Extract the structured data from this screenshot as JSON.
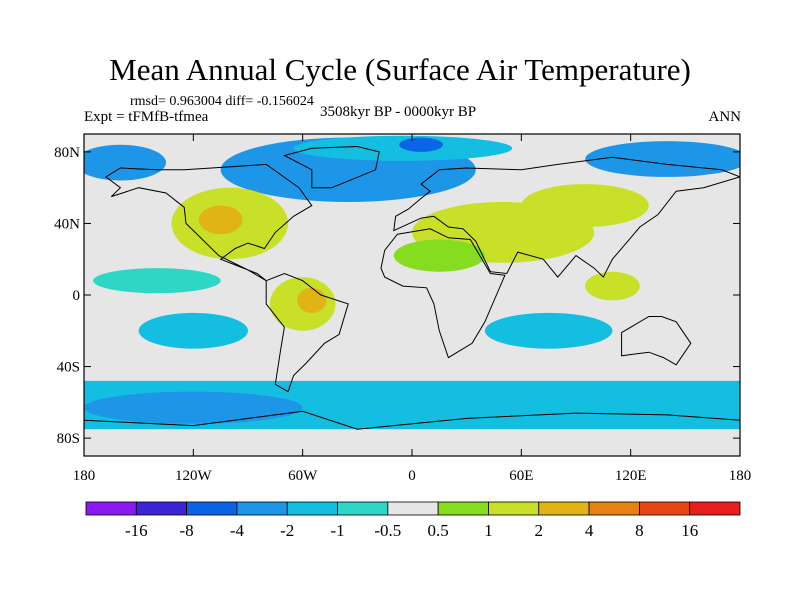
{
  "header": {
    "title": "Mean Annual Cycle (Surface Air Temperature)",
    "stats": "rmsd= 0.963004 diff= -0.156024",
    "experiment": "Expt = tFMfB-tfmea",
    "period": "3508kyr BP - 0000kyr BP",
    "season": "ANN"
  },
  "chart_data": {
    "type": "heatmap",
    "title": "Mean Annual Cycle (Surface Air Temperature)",
    "xlabel": "",
    "ylabel": "",
    "xlim": [
      -180,
      180
    ],
    "ylim": [
      -90,
      90
    ],
    "x_ticks": [
      {
        "value": -180,
        "label": "180"
      },
      {
        "value": -120,
        "label": "120W"
      },
      {
        "value": -60,
        "label": "60W"
      },
      {
        "value": 0,
        "label": "0"
      },
      {
        "value": 60,
        "label": "60E"
      },
      {
        "value": 120,
        "label": "120E"
      },
      {
        "value": 180,
        "label": "180"
      }
    ],
    "y_ticks": [
      {
        "value": 80,
        "label": "80N"
      },
      {
        "value": 40,
        "label": "40N"
      },
      {
        "value": 0,
        "label": "0"
      },
      {
        "value": -40,
        "label": "40S"
      },
      {
        "value": -80,
        "label": "80S"
      }
    ],
    "levels": [
      -16,
      -8,
      -4,
      -2,
      -1,
      -0.5,
      0.5,
      1,
      2,
      4,
      8,
      16
    ],
    "level_labels": [
      "-16",
      "-8",
      "-4",
      "-2",
      "-1",
      "-0.5",
      "0.5",
      "1",
      "2",
      "4",
      "8",
      "16"
    ],
    "colors": [
      "#8A1AF0",
      "#3A24D6",
      "#0A64E6",
      "#1E96E8",
      "#14BEE0",
      "#2ED6C6",
      "#E6E6E6",
      "#86DC1E",
      "#C8E028",
      "#E0B414",
      "#E68214",
      "#E64614",
      "#E61E1E"
    ],
    "regions": [
      {
        "name": "north-atlantic-polar",
        "bin": 3,
        "shape": "ellipse",
        "lon": -35,
        "lat": 70,
        "rlon": 70,
        "rlat": 18
      },
      {
        "name": "arctic-greenland",
        "bin": 4,
        "shape": "ellipse",
        "lon": -5,
        "lat": 82,
        "rlon": 60,
        "rlat": 7
      },
      {
        "name": "arctic-core",
        "bin": 2,
        "shape": "ellipse",
        "lon": 5,
        "lat": 84,
        "rlon": 12,
        "rlat": 4
      },
      {
        "name": "arctic-bering",
        "bin": 3,
        "shape": "ellipse",
        "lon": -160,
        "lat": 74,
        "rlon": 25,
        "rlat": 10
      },
      {
        "name": "arctic-siberia",
        "bin": 3,
        "shape": "ellipse",
        "lon": 140,
        "lat": 76,
        "rlon": 45,
        "rlat": 10
      },
      {
        "name": "north-america-warm",
        "bin": 8,
        "shape": "ellipse",
        "lon": -100,
        "lat": 40,
        "rlon": 32,
        "rlat": 20
      },
      {
        "name": "north-america-hot",
        "bin": 9,
        "shape": "ellipse",
        "lon": -105,
        "lat": 42,
        "rlon": 12,
        "rlat": 8
      },
      {
        "name": "eurasia-warm",
        "bin": 8,
        "shape": "ellipse",
        "lon": 50,
        "lat": 35,
        "rlon": 50,
        "rlat": 17
      },
      {
        "name": "sahara-green",
        "bin": 7,
        "shape": "ellipse",
        "lon": 15,
        "lat": 22,
        "rlon": 25,
        "rlat": 9
      },
      {
        "name": "asia-warm",
        "bin": 8,
        "shape": "ellipse",
        "lon": 95,
        "lat": 50,
        "rlon": 35,
        "rlat": 12
      },
      {
        "name": "south-america-warm",
        "bin": 8,
        "shape": "ellipse",
        "lon": -60,
        "lat": -5,
        "rlon": 18,
        "rlat": 15
      },
      {
        "name": "south-america-hot",
        "bin": 9,
        "shape": "ellipse",
        "lon": -55,
        "lat": -3,
        "rlon": 8,
        "rlat": 7
      },
      {
        "name": "indonesia-warm",
        "bin": 8,
        "shape": "ellipse",
        "lon": 110,
        "lat": 5,
        "rlon": 15,
        "rlat": 8
      },
      {
        "name": "southern-ocean-band",
        "bin": 4,
        "shape": "band",
        "lat0": -75,
        "lat1": -48
      },
      {
        "name": "southern-ocean-cold",
        "bin": 3,
        "shape": "ellipse",
        "lon": -120,
        "lat": -63,
        "rlon": 60,
        "rlat": 9
      },
      {
        "name": "south-pacific-cool",
        "bin": 4,
        "shape": "ellipse",
        "lon": -120,
        "lat": -20,
        "rlon": 30,
        "rlat": 10
      },
      {
        "name": "indian-ocean-cool",
        "bin": 4,
        "shape": "ellipse",
        "lon": 75,
        "lat": -20,
        "rlon": 35,
        "rlat": 10
      },
      {
        "name": "tropical-atlantic-cool",
        "bin": 5,
        "shape": "ellipse",
        "lon": -140,
        "lat": 8,
        "rlon": 35,
        "rlat": 7
      }
    ],
    "continents": [
      {
        "name": "north-america",
        "points": [
          [
            -168,
            66
          ],
          [
            -160,
            71
          ],
          [
            -140,
            70
          ],
          [
            -125,
            70
          ],
          [
            -95,
            72
          ],
          [
            -80,
            73
          ],
          [
            -62,
            60
          ],
          [
            -55,
            50
          ],
          [
            -65,
            44
          ],
          [
            -75,
            35
          ],
          [
            -81,
            26
          ],
          [
            -90,
            29
          ],
          [
            -97,
            26
          ],
          [
            -105,
            20
          ],
          [
            -95,
            16
          ],
          [
            -85,
            12
          ],
          [
            -80,
            8
          ],
          [
            -90,
            14
          ],
          [
            -106,
            22
          ],
          [
            -115,
            31
          ],
          [
            -124,
            40
          ],
          [
            -125,
            49
          ],
          [
            -135,
            57
          ],
          [
            -150,
            60
          ],
          [
            -165,
            55
          ],
          [
            -160,
            60
          ]
        ]
      },
      {
        "name": "greenland",
        "points": [
          [
            -55,
            60
          ],
          [
            -44,
            60
          ],
          [
            -20,
            70
          ],
          [
            -18,
            80
          ],
          [
            -30,
            83
          ],
          [
            -55,
            82
          ],
          [
            -70,
            78
          ],
          [
            -55,
            70
          ]
        ]
      },
      {
        "name": "south-america",
        "points": [
          [
            -80,
            8
          ],
          [
            -70,
            12
          ],
          [
            -60,
            8
          ],
          [
            -50,
            0
          ],
          [
            -35,
            -5
          ],
          [
            -40,
            -22
          ],
          [
            -48,
            -27
          ],
          [
            -58,
            -38
          ],
          [
            -65,
            -45
          ],
          [
            -68,
            -54
          ],
          [
            -75,
            -50
          ],
          [
            -72,
            -30
          ],
          [
            -70,
            -18
          ],
          [
            -80,
            -5
          ]
        ]
      },
      {
        "name": "europe-asia",
        "points": [
          [
            -10,
            36
          ],
          [
            -9,
            44
          ],
          [
            -2,
            48
          ],
          [
            5,
            54
          ],
          [
            10,
            58
          ],
          [
            5,
            62
          ],
          [
            15,
            70
          ],
          [
            30,
            71
          ],
          [
            60,
            70
          ],
          [
            80,
            73
          ],
          [
            110,
            77
          ],
          [
            140,
            73
          ],
          [
            170,
            70
          ],
          [
            180,
            66
          ],
          [
            160,
            60
          ],
          [
            145,
            58
          ],
          [
            135,
            45
          ],
          [
            125,
            38
          ],
          [
            120,
            32
          ],
          [
            110,
            20
          ],
          [
            105,
            10
          ],
          [
            100,
            15
          ],
          [
            90,
            22
          ],
          [
            80,
            10
          ],
          [
            72,
            20
          ],
          [
            58,
            24
          ],
          [
            52,
            12
          ],
          [
            43,
            13
          ],
          [
            35,
            30
          ],
          [
            28,
            37
          ],
          [
            20,
            38
          ],
          [
            12,
            44
          ],
          [
            5,
            43
          ]
        ]
      },
      {
        "name": "africa",
        "points": [
          [
            -17,
            15
          ],
          [
            -15,
            25
          ],
          [
            -8,
            34
          ],
          [
            10,
            37
          ],
          [
            20,
            32
          ],
          [
            32,
            31
          ],
          [
            43,
            12
          ],
          [
            51,
            11
          ],
          [
            40,
            -15
          ],
          [
            33,
            -27
          ],
          [
            20,
            -35
          ],
          [
            15,
            -20
          ],
          [
            12,
            -5
          ],
          [
            8,
            4
          ],
          [
            -5,
            5
          ],
          [
            -15,
            10
          ]
        ]
      },
      {
        "name": "australia",
        "points": [
          [
            115,
            -21
          ],
          [
            130,
            -12
          ],
          [
            137,
            -12
          ],
          [
            145,
            -15
          ],
          [
            153,
            -27
          ],
          [
            145,
            -39
          ],
          [
            138,
            -35
          ],
          [
            130,
            -32
          ],
          [
            115,
            -34
          ]
        ]
      },
      {
        "name": "antarctica",
        "points": [
          [
            -180,
            -70
          ],
          [
            -120,
            -73
          ],
          [
            -60,
            -65
          ],
          [
            -30,
            -75
          ],
          [
            30,
            -69
          ],
          [
            90,
            -66
          ],
          [
            140,
            -67
          ],
          [
            180,
            -70
          ],
          [
            180,
            -90
          ],
          [
            -180,
            -90
          ]
        ]
      }
    ]
  }
}
